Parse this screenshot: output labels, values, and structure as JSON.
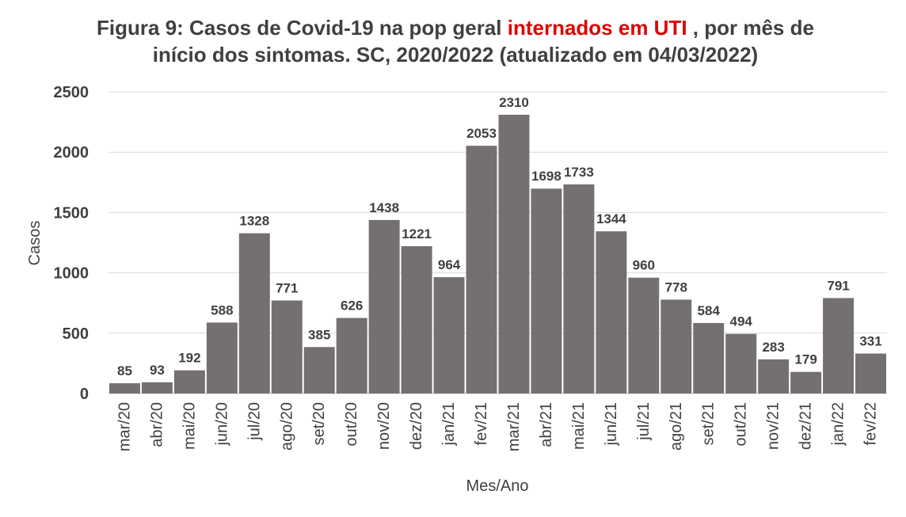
{
  "chart_data": {
    "type": "bar",
    "title_part1": "Figura 9: Casos de Covid-19 na pop geral",
    "title_highlight": "internados em UTI",
    "title_part2": ", por mês de",
    "title_line2": "início dos sintomas. SC, 2020/2022 (atualizado em 04/03/2022)",
    "xlabel": "Mes/Ano",
    "ylabel": "Casos",
    "ylim": [
      0,
      2500
    ],
    "yticks": [
      0,
      500,
      1000,
      1500,
      2000,
      2500
    ],
    "grid": true,
    "bar_color": "#747070",
    "highlight_color": "#e00000",
    "categories": [
      "mar/20",
      "abr/20",
      "mai/20",
      "jun/20",
      "jul/20",
      "ago/20",
      "set/20",
      "out/20",
      "nov/20",
      "dez/20",
      "jan/21",
      "fev/21",
      "mar/21",
      "abr/21",
      "mai/21",
      "jun/21",
      "jul/21",
      "ago/21",
      "set/21",
      "out/21",
      "nov/21",
      "dez/21",
      "jan/22",
      "fev/22"
    ],
    "values": [
      85,
      93,
      192,
      588,
      1328,
      771,
      385,
      626,
      1438,
      1221,
      964,
      2053,
      2310,
      1698,
      1733,
      1344,
      960,
      778,
      584,
      494,
      283,
      179,
      791,
      331
    ]
  }
}
